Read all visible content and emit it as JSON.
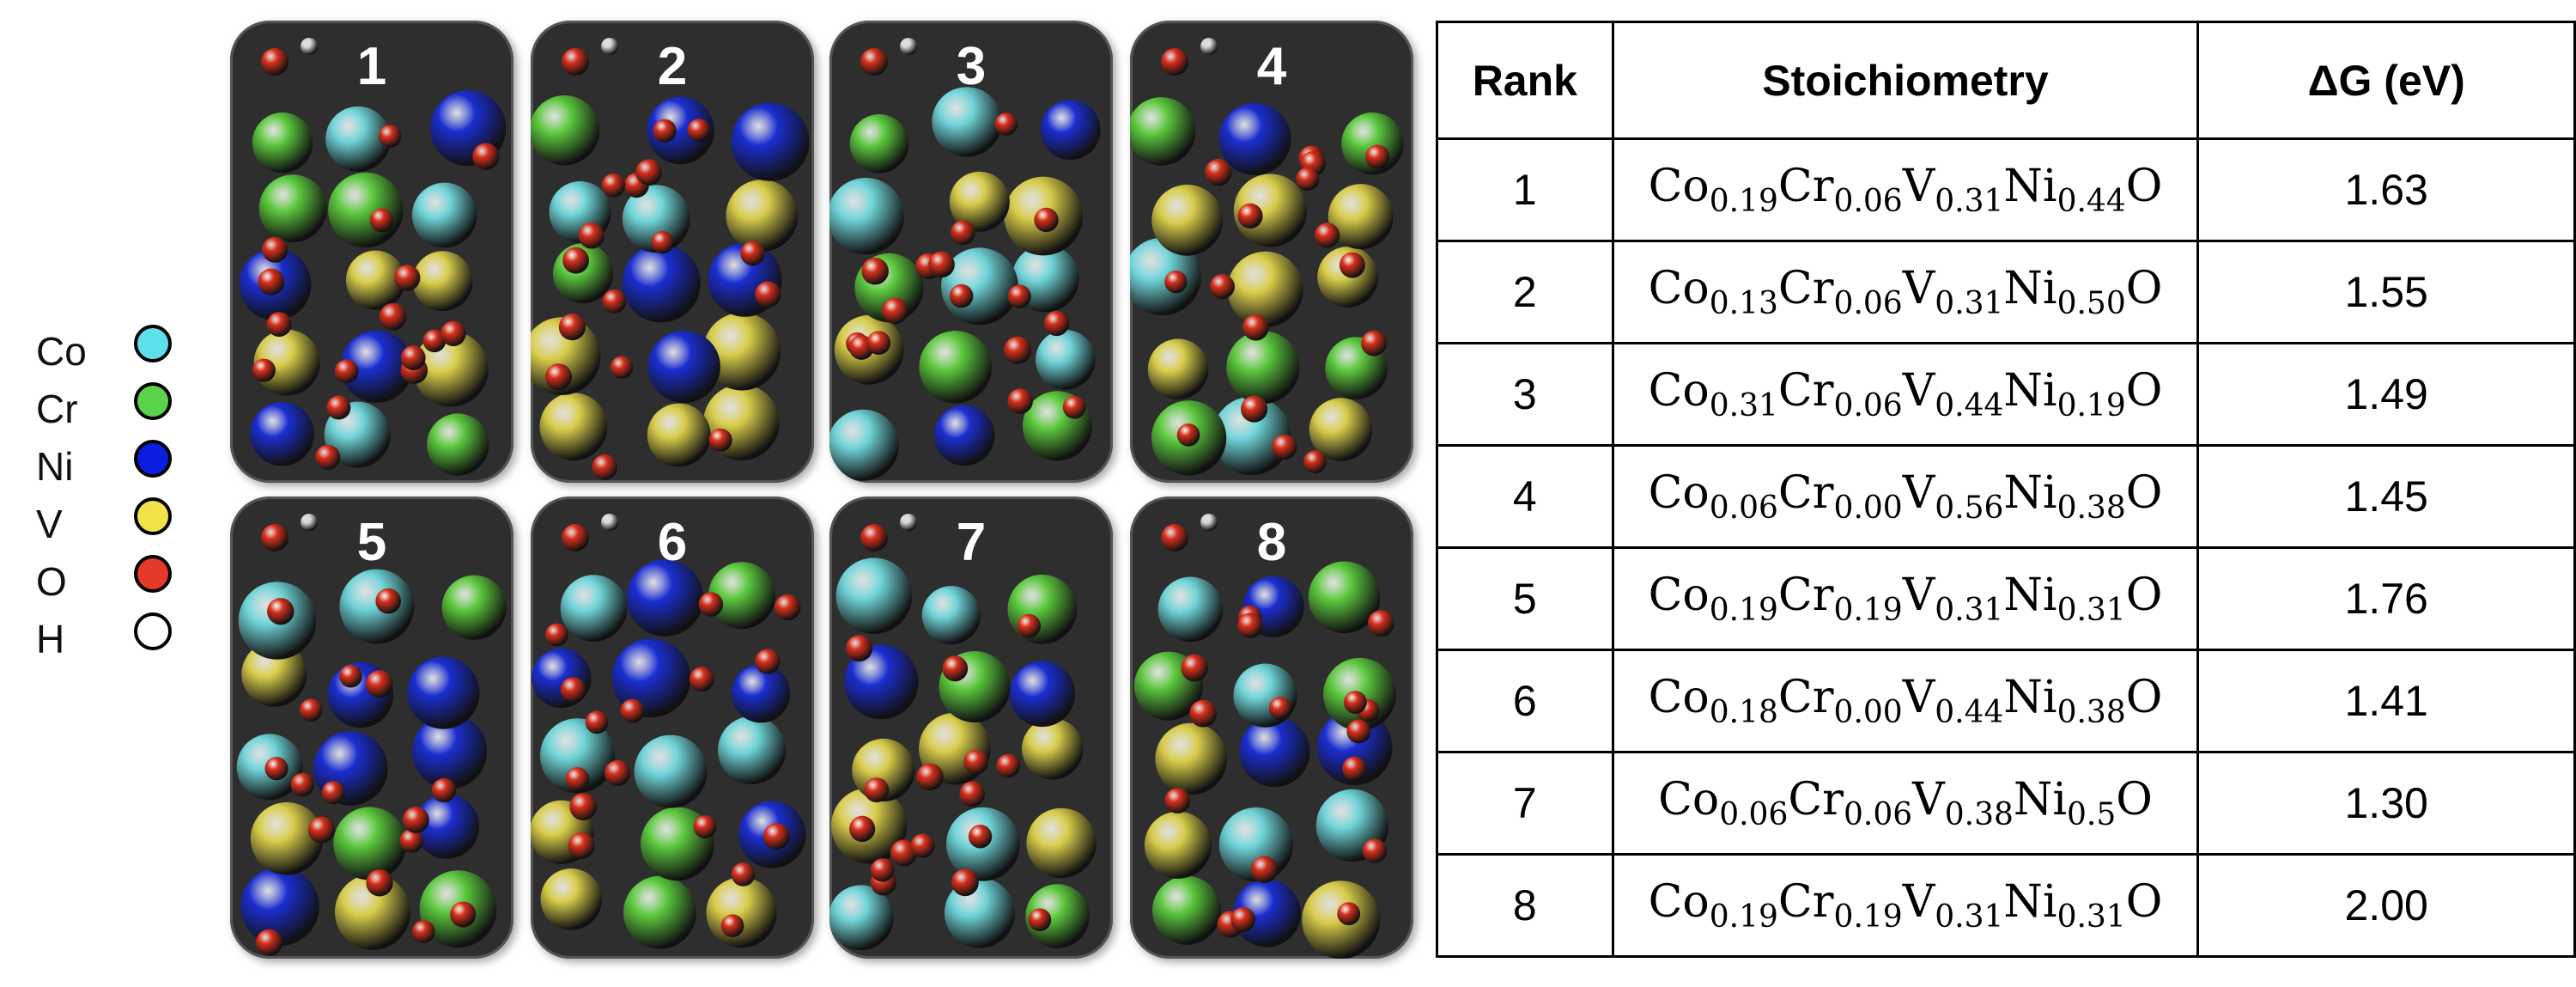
{
  "legend": [
    {
      "label": "Co",
      "color": "#5ee0ea"
    },
    {
      "label": "Cr",
      "color": "#5ad24a"
    },
    {
      "label": "Ni",
      "color": "#0a1ee0"
    },
    {
      "label": "V",
      "color": "#f2e24a"
    },
    {
      "label": "O",
      "color": "#e43a2a"
    },
    {
      "label": "H",
      "color": "#ffffff"
    }
  ],
  "panels": [
    {
      "label": "1"
    },
    {
      "label": "2"
    },
    {
      "label": "3"
    },
    {
      "label": "4"
    },
    {
      "label": "5"
    },
    {
      "label": "6"
    },
    {
      "label": "7"
    },
    {
      "label": "8"
    }
  ],
  "table": {
    "headers": {
      "rank": "Rank",
      "stoich": "Stoichiometry",
      "dg": "ΔG (eV)"
    },
    "rows": [
      {
        "rank": "1",
        "parts": [
          "0.19",
          "0.06",
          "0.31",
          "0.44"
        ],
        "dg": "1.63"
      },
      {
        "rank": "2",
        "parts": [
          "0.13",
          "0.06",
          "0.31",
          "0.50"
        ],
        "dg": "1.55"
      },
      {
        "rank": "3",
        "parts": [
          "0.31",
          "0.06",
          "0.44",
          "0.19"
        ],
        "dg": "1.49"
      },
      {
        "rank": "4",
        "parts": [
          "0.06",
          "0.00",
          "0.56",
          "0.38"
        ],
        "dg": "1.45"
      },
      {
        "rank": "5",
        "parts": [
          "0.19",
          "0.19",
          "0.31",
          "0.31"
        ],
        "dg": "1.76"
      },
      {
        "rank": "6",
        "parts": [
          "0.18",
          "0.00",
          "0.44",
          "0.38"
        ],
        "dg": "1.41"
      },
      {
        "rank": "7",
        "parts": [
          "0.06",
          "0.06",
          "0.38",
          "0.5"
        ],
        "dg": "1.30"
      },
      {
        "rank": "8",
        "parts": [
          "0.19",
          "0.19",
          "0.31",
          "0.31"
        ],
        "dg": "2.00"
      }
    ],
    "elements": [
      "Co",
      "Cr",
      "V",
      "Ni",
      "O"
    ]
  },
  "atom_colors": {
    "Co": "#6fd4d8",
    "Cr": "#5cc83e",
    "Ni": "#1b2ed0",
    "V": "#d8cc4a",
    "O": "#d8301c",
    "H": "#d8d8d8"
  }
}
